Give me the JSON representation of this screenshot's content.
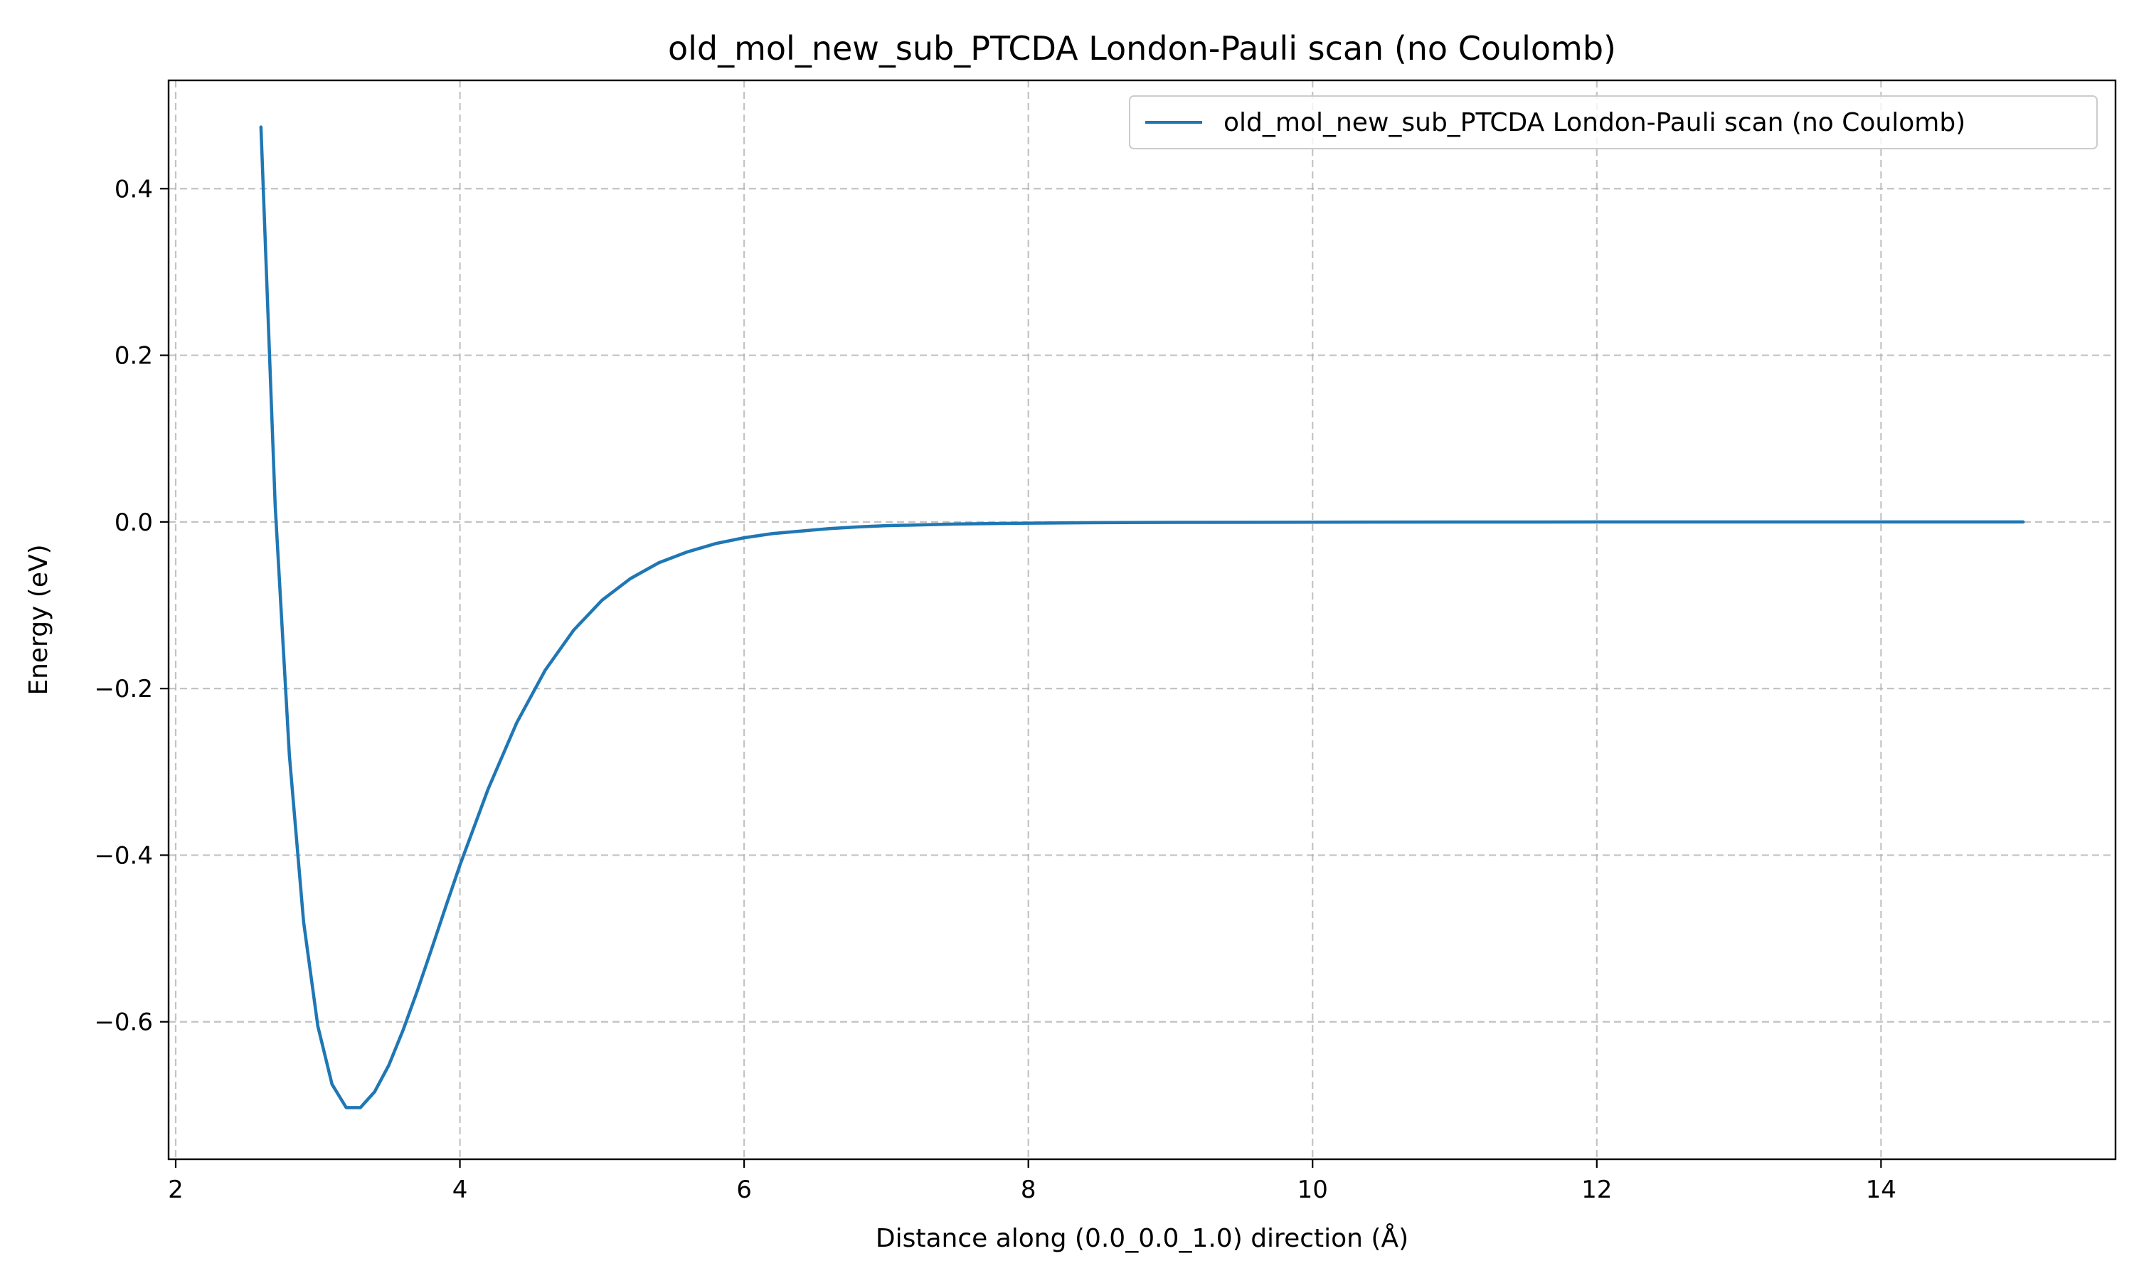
{
  "chart_data": {
    "type": "line",
    "title": "old_mol_new_sub_PTCDA London-Pauli scan (no Coulomb)",
    "xlabel": "Distance along (0.0_0.0_1.0) direction (Å)",
    "ylabel": "Energy (eV)",
    "xlim": [
      1.95,
      15.65
    ],
    "ylim": [
      -0.765,
      0.53
    ],
    "xticks": [
      2,
      4,
      6,
      8,
      10,
      12,
      14
    ],
    "yticks": [
      -0.6,
      -0.4,
      -0.2,
      0.0,
      0.2,
      0.4
    ],
    "xtick_labels": [
      "2",
      "4",
      "6",
      "8",
      "10",
      "12",
      "14"
    ],
    "ytick_labels": [
      "−0.6",
      "−0.4",
      "−0.2",
      "0.0",
      "0.2",
      "0.4"
    ],
    "grid": true,
    "legend_position": "top-right",
    "series": [
      {
        "name": "old_mol_new_sub_PTCDA London-Pauli scan (no Coulomb)",
        "color": "#1f77b4",
        "x": [
          2.6,
          2.7,
          2.8,
          2.9,
          3.0,
          3.1,
          3.2,
          3.3,
          3.4,
          3.5,
          3.6,
          3.7,
          3.8,
          3.9,
          4.0,
          4.2,
          4.4,
          4.6,
          4.8,
          5.0,
          5.2,
          5.4,
          5.6,
          5.8,
          6.0,
          6.2,
          6.4,
          6.6,
          6.8,
          7.0,
          7.5,
          8.0,
          8.5,
          9.0,
          10.0,
          11.0,
          12.0,
          13.0,
          14.0,
          15.0
        ],
        "y": [
          0.474,
          0.02,
          -0.28,
          -0.48,
          -0.605,
          -0.675,
          -0.703,
          -0.703,
          -0.684,
          -0.652,
          -0.61,
          -0.563,
          -0.513,
          -0.462,
          -0.412,
          -0.32,
          -0.241,
          -0.178,
          -0.13,
          -0.094,
          -0.068,
          -0.049,
          -0.036,
          -0.026,
          -0.019,
          -0.014,
          -0.011,
          -0.008,
          -0.006,
          -0.0045,
          -0.0025,
          -0.0015,
          -0.0009,
          -0.0006,
          -0.0003,
          -0.0001,
          -5e-05,
          0.0,
          0.0,
          0.0
        ]
      }
    ]
  }
}
